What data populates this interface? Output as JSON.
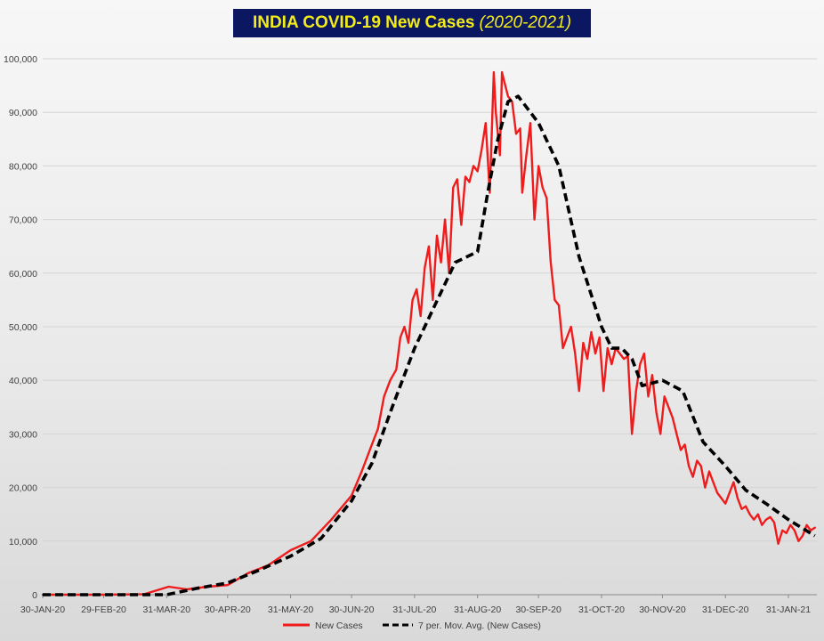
{
  "chart_data": {
    "type": "line",
    "title": "INDIA COVID-19 New Cases",
    "subtitle": "(2020-2021)",
    "xlabel": "",
    "ylabel": "",
    "ylim": [
      0,
      100000
    ],
    "y_ticks": [
      0,
      10000,
      20000,
      30000,
      40000,
      50000,
      60000,
      70000,
      80000,
      90000,
      100000
    ],
    "y_tick_labels": [
      "0",
      "10,000",
      "20,000",
      "30,000",
      "40,000",
      "50,000",
      "60,000",
      "70,000",
      "80,000",
      "90,000",
      "100,000"
    ],
    "xlim": [
      "2020-01-30",
      "2021-02-14"
    ],
    "x_tick_labels": [
      "30-JAN-20",
      "29-FEB-20",
      "31-MAR-20",
      "30-APR-20",
      "31-MAY-20",
      "30-JUN-20",
      "31-JUL-20",
      "31-AUG-20",
      "30-SEP-20",
      "31-OCT-20",
      "30-NOV-20",
      "31-DEC-20",
      "31-JAN-21"
    ],
    "x_tick_dates": [
      "2020-01-30",
      "2020-02-29",
      "2020-03-31",
      "2020-04-30",
      "2020-05-31",
      "2020-06-30",
      "2020-07-31",
      "2020-08-31",
      "2020-09-30",
      "2020-10-31",
      "2020-11-30",
      "2020-12-31",
      "2021-01-31"
    ],
    "grid": true,
    "legend_position": "bottom",
    "series": [
      {
        "name": "New Cases",
        "color": "#ee1c1c",
        "style": "solid",
        "x": [
          "2020-01-30",
          "2020-03-01",
          "2020-03-20",
          "2020-04-01",
          "2020-04-10",
          "2020-04-20",
          "2020-04-30",
          "2020-05-10",
          "2020-05-20",
          "2020-05-31",
          "2020-06-10",
          "2020-06-20",
          "2020-06-30",
          "2020-07-05",
          "2020-07-10",
          "2020-07-13",
          "2020-07-16",
          "2020-07-19",
          "2020-07-22",
          "2020-07-24",
          "2020-07-26",
          "2020-07-28",
          "2020-07-30",
          "2020-08-01",
          "2020-08-03",
          "2020-08-05",
          "2020-08-07",
          "2020-08-09",
          "2020-08-11",
          "2020-08-13",
          "2020-08-15",
          "2020-08-17",
          "2020-08-19",
          "2020-08-21",
          "2020-08-23",
          "2020-08-25",
          "2020-08-27",
          "2020-08-29",
          "2020-08-31",
          "2020-09-02",
          "2020-09-04",
          "2020-09-06",
          "2020-09-08",
          "2020-09-09",
          "2020-09-11",
          "2020-09-12",
          "2020-09-13",
          "2020-09-15",
          "2020-09-17",
          "2020-09-19",
          "2020-09-21",
          "2020-09-22",
          "2020-09-24",
          "2020-09-26",
          "2020-09-28",
          "2020-09-30",
          "2020-10-02",
          "2020-10-04",
          "2020-10-06",
          "2020-10-08",
          "2020-10-10",
          "2020-10-12",
          "2020-10-14",
          "2020-10-16",
          "2020-10-18",
          "2020-10-20",
          "2020-10-22",
          "2020-10-24",
          "2020-10-26",
          "2020-10-28",
          "2020-10-30",
          "2020-11-01",
          "2020-11-03",
          "2020-11-05",
          "2020-11-07",
          "2020-11-09",
          "2020-11-11",
          "2020-11-13",
          "2020-11-15",
          "2020-11-17",
          "2020-11-19",
          "2020-11-21",
          "2020-11-23",
          "2020-11-25",
          "2020-11-27",
          "2020-11-29",
          "2020-12-01",
          "2020-12-03",
          "2020-12-05",
          "2020-12-07",
          "2020-12-09",
          "2020-12-11",
          "2020-12-13",
          "2020-12-15",
          "2020-12-17",
          "2020-12-19",
          "2020-12-21",
          "2020-12-23",
          "2020-12-25",
          "2020-12-27",
          "2020-12-29",
          "2020-12-31",
          "2021-01-02",
          "2021-01-04",
          "2021-01-06",
          "2021-01-08",
          "2021-01-10",
          "2021-01-12",
          "2021-01-14",
          "2021-01-16",
          "2021-01-18",
          "2021-01-20",
          "2021-01-22",
          "2021-01-24",
          "2021-01-26",
          "2021-01-28",
          "2021-01-30",
          "2021-02-01",
          "2021-02-03",
          "2021-02-05",
          "2021-02-07",
          "2021-02-09",
          "2021-02-11",
          "2021-02-13"
        ],
        "values": [
          0,
          0,
          100,
          1500,
          1000,
          1500,
          1800,
          4000,
          5500,
          8300,
          10000,
          14000,
          18500,
          23000,
          28000,
          31000,
          37000,
          40000,
          42000,
          48000,
          50000,
          47000,
          55000,
          57000,
          52000,
          61000,
          65000,
          55000,
          67000,
          62000,
          70000,
          60000,
          76000,
          77500,
          69000,
          78000,
          77000,
          80000,
          79000,
          83000,
          88000,
          75000,
          97500,
          90000,
          82000,
          97500,
          96000,
          93000,
          92000,
          86000,
          87000,
          75000,
          82000,
          88000,
          70000,
          80000,
          76000,
          74000,
          62000,
          55000,
          54000,
          46000,
          48000,
          50000,
          45000,
          38000,
          47000,
          44000,
          49000,
          45000,
          48000,
          38000,
          46000,
          43000,
          46000,
          45000,
          44000,
          44500,
          30000,
          38000,
          43000,
          45000,
          37000,
          41000,
          34000,
          30000,
          37000,
          35000,
          33000,
          30000,
          27000,
          28000,
          24000,
          22000,
          25000,
          24000,
          20000,
          23000,
          21000,
          19000,
          18000,
          17000,
          19000,
          21000,
          18000,
          16000,
          16500,
          15000,
          14000,
          15000,
          13000,
          14000,
          14500,
          13500,
          9500,
          12000,
          11500,
          13000,
          12000,
          10000,
          11000,
          13000,
          12000,
          12500
        ]
      },
      {
        "name": "7 per. Mov. Avg. (New Cases)",
        "color": "#000000",
        "style": "dashed",
        "x": [
          "2020-01-30",
          "2020-03-01",
          "2020-03-31",
          "2020-04-15",
          "2020-04-30",
          "2020-05-15",
          "2020-05-31",
          "2020-06-15",
          "2020-06-30",
          "2020-07-10",
          "2020-07-20",
          "2020-07-31",
          "2020-08-10",
          "2020-08-20",
          "2020-08-31",
          "2020-09-05",
          "2020-09-10",
          "2020-09-15",
          "2020-09-20",
          "2020-09-30",
          "2020-10-10",
          "2020-10-20",
          "2020-10-31",
          "2020-11-05",
          "2020-11-10",
          "2020-11-15",
          "2020-11-20",
          "2020-11-25",
          "2020-11-30",
          "2020-12-10",
          "2020-12-20",
          "2020-12-31",
          "2021-01-10",
          "2021-01-20",
          "2021-01-31",
          "2021-02-13"
        ],
        "values": [
          0,
          0,
          0,
          1200,
          2200,
          4500,
          7200,
          10500,
          17500,
          24500,
          35000,
          46000,
          54000,
          62000,
          64000,
          75000,
          85000,
          92000,
          93000,
          88000,
          80000,
          63000,
          50000,
          46000,
          46000,
          44000,
          39000,
          39500,
          40000,
          38000,
          28500,
          24000,
          19500,
          17000,
          14000,
          11000
        ]
      }
    ]
  }
}
